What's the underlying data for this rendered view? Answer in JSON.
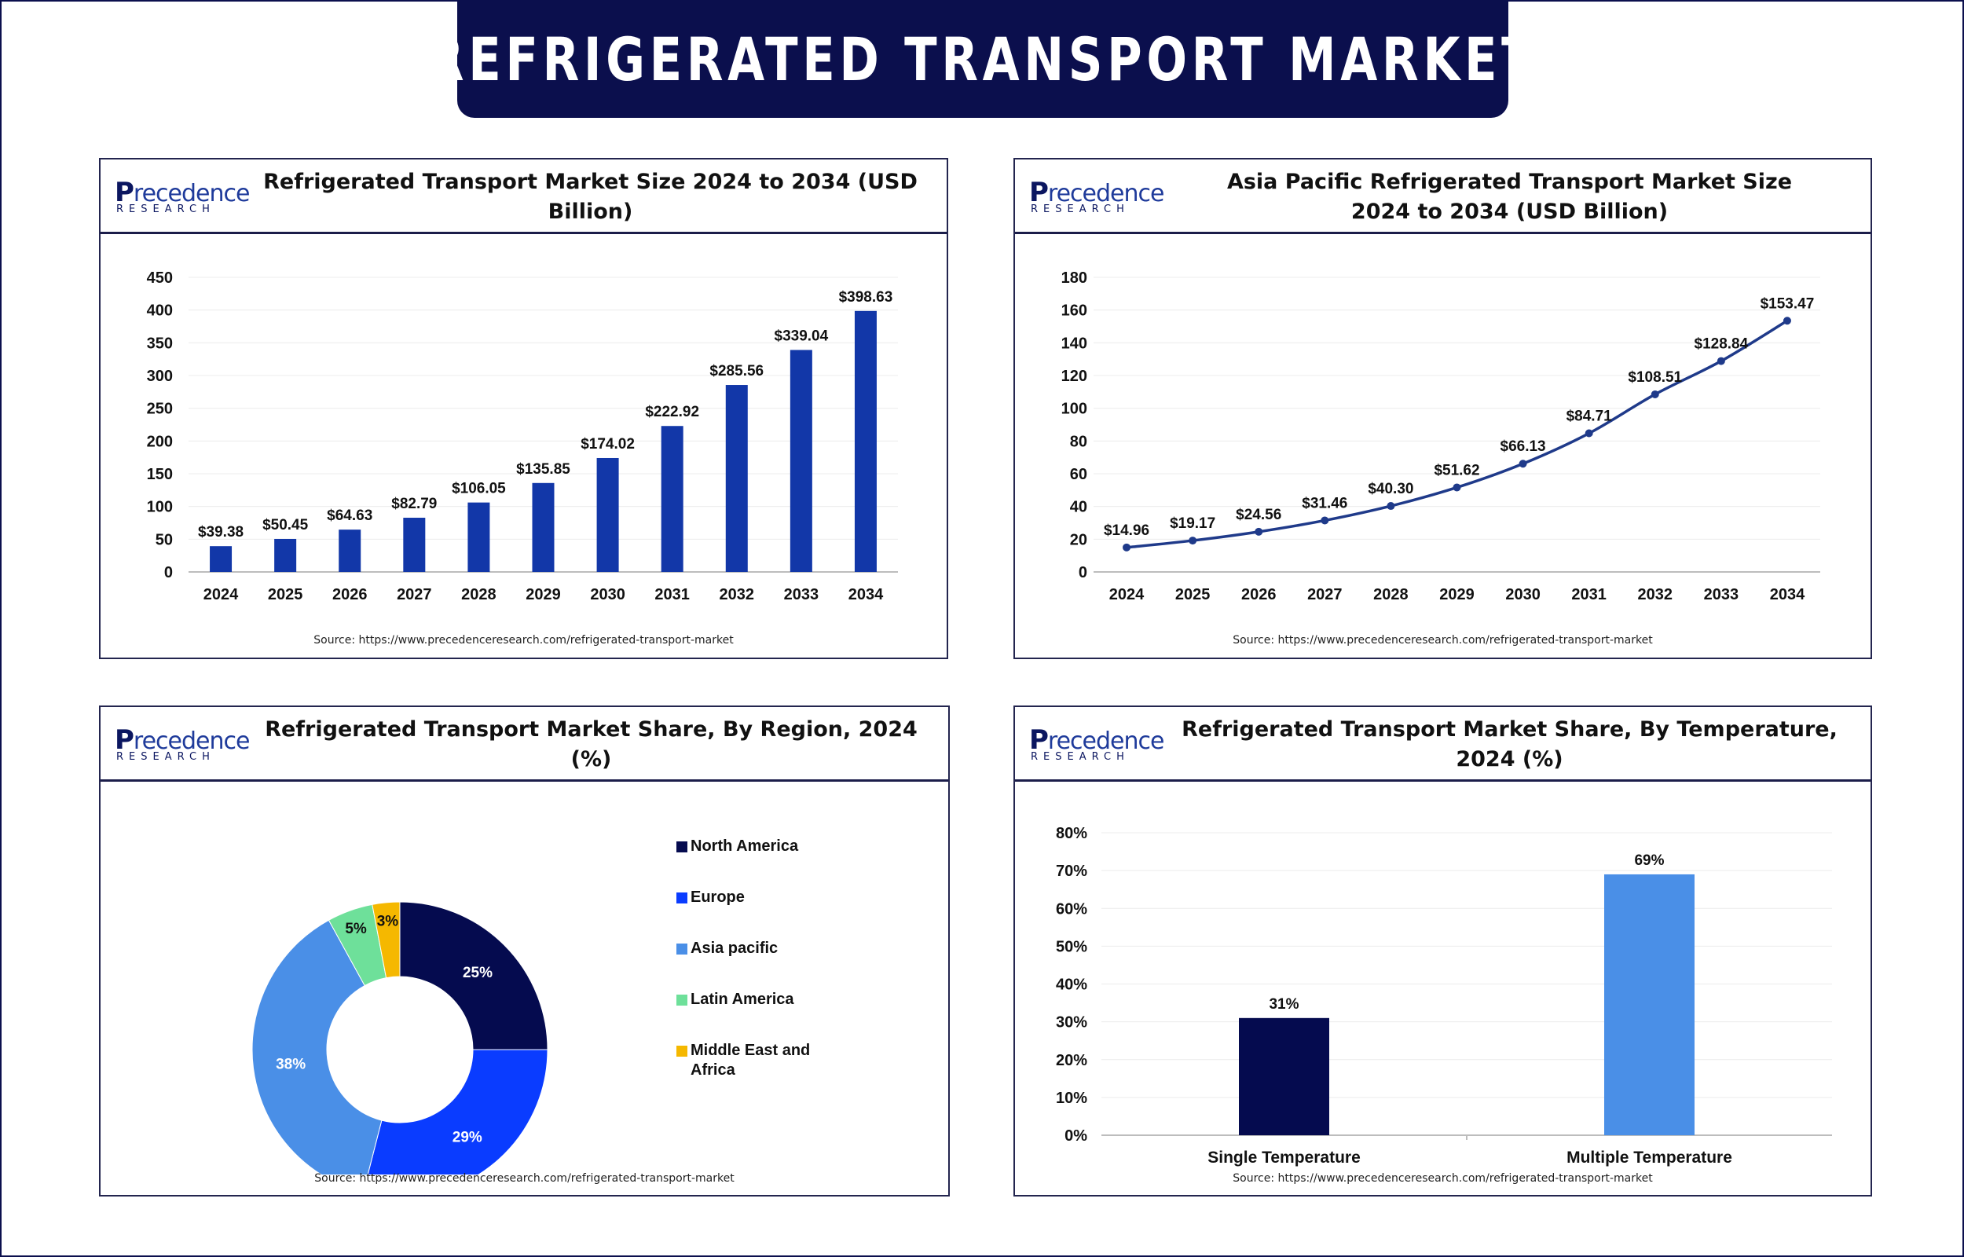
{
  "page_title": "REFRIGERATED TRANSPORT MARKET",
  "logo": {
    "mark": "P",
    "word": "recedence",
    "sub": "RESEARCH"
  },
  "colors": {
    "banner": "#0b0f4d",
    "bar": "#1237a8",
    "line": "#1f3a8a",
    "north_america": "#050b4f",
    "europe": "#0a3cff",
    "asia_pacific": "#4a8fe7",
    "latin_america": "#6ee09a",
    "middle_east": "#f5b800",
    "single_temp": "#050b4f",
    "multiple_temp": "#4a8fe7"
  },
  "panels": {
    "market_size": {
      "title": "Refrigerated Transport Market Size 2024 to 2034 (USD Billion)",
      "source": "Source: https://www.precedenceresearch.com/refrigerated-transport-market"
    },
    "asia_pacific": {
      "title": "Asia Pacific Refrigerated Transport Market Size 2024 to 2034 (USD Billion)",
      "source": "Source: https://www.precedenceresearch.com/refrigerated-transport-market"
    },
    "region": {
      "title": "Refrigerated Transport Market Share, By Region, 2024 (%)",
      "source": "Source: https://www.precedenceresearch.com/refrigerated-transport-market"
    },
    "temperature": {
      "title": "Refrigerated Transport Market Share, By Temperature, 2024 (%)",
      "source": "Source: https://www.precedenceresearch.com/refrigerated-transport-market"
    }
  },
  "chart_data": [
    {
      "id": "market_size",
      "type": "bar",
      "title": "Refrigerated Transport Market Size 2024 to 2034 (USD Billion)",
      "categories": [
        "2024",
        "2025",
        "2026",
        "2027",
        "2028",
        "2029",
        "2030",
        "2031",
        "2032",
        "2033",
        "2034"
      ],
      "values": [
        39.38,
        50.45,
        64.63,
        82.79,
        106.05,
        135.85,
        174.02,
        222.92,
        285.56,
        339.04,
        398.63
      ],
      "labels": [
        "$39.38",
        "$50.45",
        "$64.63",
        "$82.79",
        "$106.05",
        "$135.85",
        "$174.02",
        "$222.92",
        "$285.56",
        "$339.04",
        "$398.63"
      ],
      "yticks": [
        "0",
        "50",
        "100",
        "150",
        "200",
        "250",
        "300",
        "350",
        "400",
        "450"
      ],
      "ylim": [
        0,
        450
      ],
      "xlabel": "",
      "ylabel": ""
    },
    {
      "id": "asia_pacific",
      "type": "line",
      "title": "Asia Pacific Refrigerated Transport Market Size 2024 to 2034 (USD Billion)",
      "categories": [
        "2024",
        "2025",
        "2026",
        "2027",
        "2028",
        "2029",
        "2030",
        "2031",
        "2032",
        "2033",
        "2034"
      ],
      "values": [
        14.96,
        19.17,
        24.56,
        31.46,
        40.3,
        51.62,
        66.13,
        84.71,
        108.51,
        128.84,
        153.47
      ],
      "labels": [
        "$14.96",
        "$19.17",
        "$24.56",
        "$31.46",
        "$40.30",
        "$51.62",
        "$66.13",
        "$84.71",
        "$108.51",
        "$128.84",
        "$153.47"
      ],
      "yticks": [
        "0",
        "20",
        "40",
        "60",
        "80",
        "100",
        "120",
        "140",
        "160",
        "180"
      ],
      "ylim": [
        0,
        180
      ],
      "xlabel": "",
      "ylabel": ""
    },
    {
      "id": "region",
      "type": "pie",
      "title": "Refrigerated Transport Market Share, By Region, 2024 (%)",
      "categories": [
        "North America",
        "Europe",
        "Asia pacific",
        "Latin America",
        "Middle East and Africa"
      ],
      "values": [
        25,
        29,
        38,
        5,
        3
      ],
      "labels": [
        "25%",
        "29%",
        "38%",
        "5%",
        "3%"
      ],
      "donut": true,
      "legend": "right"
    },
    {
      "id": "temperature",
      "type": "bar",
      "title": "Refrigerated Transport Market Share, By Temperature, 2024 (%)",
      "categories": [
        "Single Temperature",
        "Multiple Temperature"
      ],
      "values": [
        31,
        69
      ],
      "labels": [
        "31%",
        "69%"
      ],
      "yticks": [
        "0%",
        "10%",
        "20%",
        "30%",
        "40%",
        "50%",
        "60%",
        "70%",
        "80%"
      ],
      "ylim": [
        0,
        80
      ],
      "xlabel": "",
      "ylabel": ""
    }
  ]
}
